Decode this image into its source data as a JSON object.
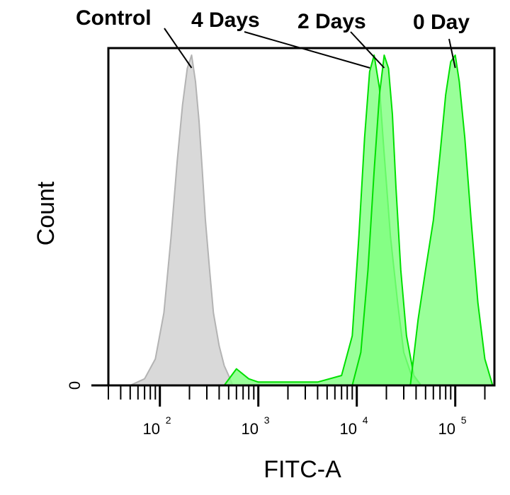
{
  "chart_data": {
    "type": "area",
    "xlabel": "FITC-A",
    "ylabel": "Count",
    "x_scale": "log",
    "xlim": [
      30,
      250000
    ],
    "ylim": [
      0,
      100
    ],
    "y_ticks": [
      {
        "value": 0,
        "label": "0"
      }
    ],
    "x_ticks": [
      {
        "value": 100,
        "base": "10",
        "exp": "2"
      },
      {
        "value": 1000,
        "base": "10",
        "exp": "3"
      },
      {
        "value": 10000,
        "base": "10",
        "exp": "4"
      },
      {
        "value": 100000,
        "base": "10",
        "exp": "5"
      }
    ],
    "grid": false,
    "series": [
      {
        "name": "Control",
        "color": "#d9d9d9",
        "edge": "#b3b3b3",
        "x": [
          50,
          70,
          90,
          110,
          130,
          150,
          170,
          190,
          210,
          230,
          250,
          270,
          290,
          320,
          350,
          400,
          450,
          500,
          550
        ],
        "y": [
          0,
          2,
          8,
          22,
          45,
          68,
          85,
          96,
          100,
          92,
          80,
          65,
          50,
          35,
          22,
          12,
          6,
          3,
          0
        ]
      },
      {
        "name": "4 Days",
        "color": "#80ff80",
        "edge": "#00e000",
        "x": [
          450,
          600,
          800,
          1000,
          2000,
          4000,
          7000,
          9000,
          10500,
          12000,
          13500,
          15000,
          17000,
          19000,
          22000,
          26000,
          30000,
          36000,
          45000
        ],
        "y": [
          0,
          5,
          2,
          1,
          1,
          1,
          3,
          15,
          45,
          75,
          95,
          100,
          90,
          70,
          45,
          25,
          10,
          3,
          0
        ]
      },
      {
        "name": "2 Days",
        "color": "#80ff80",
        "edge": "#00e000",
        "x": [
          9000,
          11000,
          13000,
          15000,
          17000,
          19000,
          21000,
          23000,
          25000,
          28000,
          32000,
          38000,
          45000
        ],
        "y": [
          0,
          10,
          35,
          65,
          88,
          100,
          96,
          82,
          60,
          35,
          15,
          3,
          0
        ]
      },
      {
        "name": "0 Day",
        "color": "#80ff80",
        "edge": "#00e000",
        "x": [
          35000,
          42000,
          50000,
          60000,
          70000,
          80000,
          90000,
          100000,
          110000,
          125000,
          145000,
          170000,
          200000,
          240000
        ],
        "y": [
          0,
          20,
          35,
          50,
          70,
          88,
          98,
          100,
          92,
          75,
          50,
          25,
          8,
          0
        ]
      }
    ],
    "annotations": [
      "Control",
      "4 Days",
      "2 Days",
      "0 Day"
    ]
  }
}
